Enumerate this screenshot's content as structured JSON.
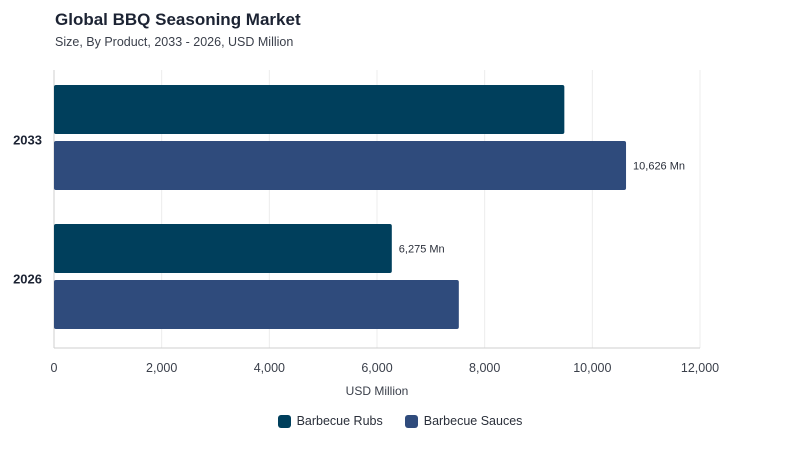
{
  "chart_data": {
    "type": "bar",
    "orientation": "horizontal",
    "title": "Global BBQ Seasoning Market",
    "subtitle": "Size, By Product, 2033 - 2026, USD Million",
    "categories": [
      "2033",
      "2026"
    ],
    "series": [
      {
        "name": "Barbecue Rubs",
        "color": "#003f5c",
        "values": [
          9480,
          6275
        ],
        "value_labels": [
          "",
          "6,275 Mn"
        ]
      },
      {
        "name": "Barbecue Sauces",
        "color": "#2f4b7c",
        "values": [
          10626,
          7520
        ],
        "value_labels": [
          "10,626 Mn",
          ""
        ]
      }
    ],
    "xlabel": "USD Million",
    "ylabel": "",
    "xlim": [
      0,
      12000
    ],
    "xticks": [
      0,
      2000,
      4000,
      6000,
      8000,
      10000,
      12000
    ],
    "xtick_labels": [
      "0",
      "2,000",
      "4,000",
      "6,000",
      "8,000",
      "10,000",
      "12,000"
    ],
    "grid": "vertical",
    "legend_position": "bottom-center"
  }
}
